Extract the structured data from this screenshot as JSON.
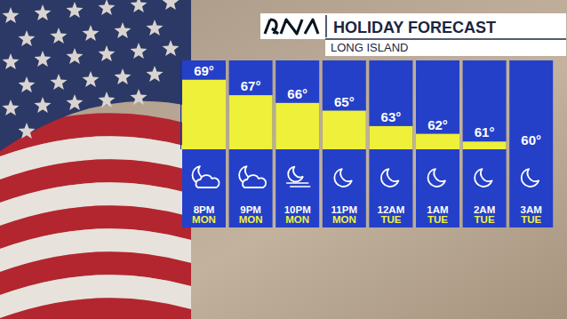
{
  "chart_data": {
    "type": "bar",
    "title": "HOLIDAY FORECAST",
    "subtitle": "LONG ISLAND",
    "categories": [
      "8PM MON",
      "9PM MON",
      "10PM MON",
      "11PM MON",
      "12AM TUE",
      "1AM TUE",
      "2AM TUE",
      "3AM TUE"
    ],
    "values": [
      69,
      67,
      66,
      65,
      63,
      62,
      61,
      60
    ],
    "value_labels": [
      "69°",
      "67°",
      "66°",
      "65°",
      "63°",
      "62°",
      "61°",
      "60°"
    ],
    "color": "#eef03a",
    "ylim": [
      60,
      71.5
    ],
    "data_labels": true,
    "tick_labels": "x"
  }
}
